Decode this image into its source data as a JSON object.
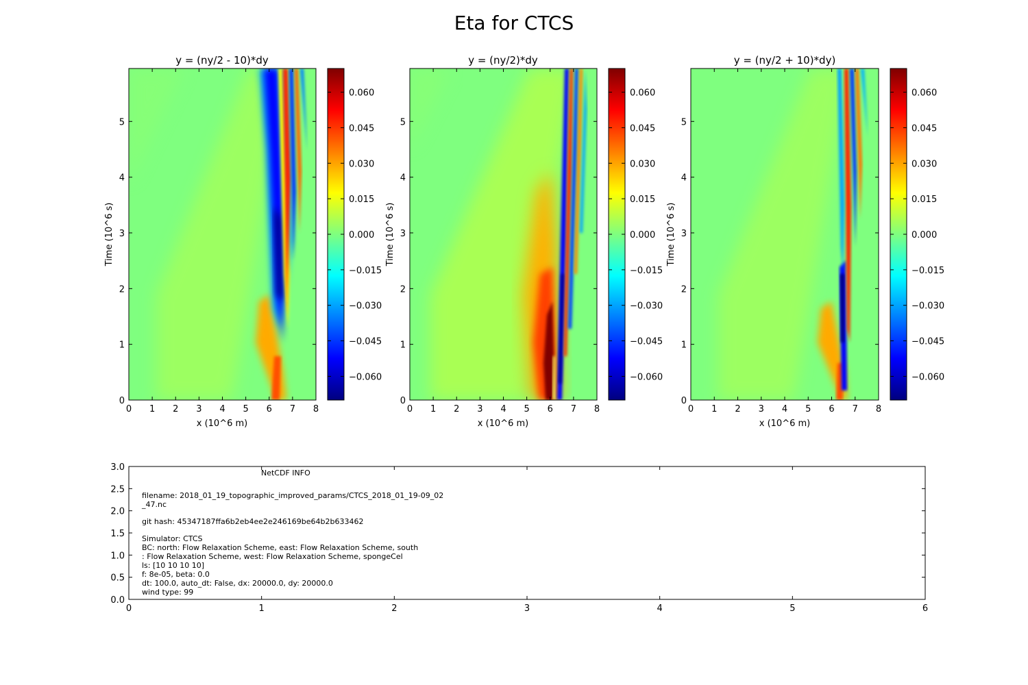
{
  "title": "Eta for CTCS",
  "colormap": [
    "#00007f",
    "#0000ff",
    "#007fff",
    "#00ffff",
    "#7fff7f",
    "#ffff00",
    "#ff7f00",
    "#ff0000",
    "#7f0000"
  ],
  "chart_data": [
    {
      "type": "heatmap",
      "title": "y = (ny/2 - 10)*dy",
      "xlabel": "x (10^6 m)",
      "ylabel": "Time (10^6 s)",
      "xlim": [
        0,
        8
      ],
      "ylim": [
        0,
        5.95
      ],
      "xticks": [
        "0",
        "1",
        "2",
        "3",
        "4",
        "5",
        "6",
        "7",
        "8"
      ],
      "yticks": [
        "0",
        "1",
        "2",
        "3",
        "4",
        "5"
      ],
      "colorbar": {
        "range": [
          -0.07,
          0.07
        ],
        "ticks": [
          "0.060",
          "0.045",
          "0.030",
          "0.015",
          "0.000",
          "−0.015",
          "−0.030",
          "−0.045",
          "−0.060"
        ]
      }
    },
    {
      "type": "heatmap",
      "title": "y = (ny/2)*dy",
      "xlabel": "x (10^6 m)",
      "ylabel": "Time (10^6 s)",
      "xlim": [
        0,
        8
      ],
      "ylim": [
        0,
        5.95
      ],
      "xticks": [
        "0",
        "1",
        "2",
        "3",
        "4",
        "5",
        "6",
        "7",
        "8"
      ],
      "yticks": [
        "0",
        "1",
        "2",
        "3",
        "4",
        "5"
      ],
      "colorbar": {
        "range": [
          -0.07,
          0.07
        ],
        "ticks": [
          "0.060",
          "0.045",
          "0.030",
          "0.015",
          "0.000",
          "−0.015",
          "−0.030",
          "−0.045",
          "−0.060"
        ]
      }
    },
    {
      "type": "heatmap",
      "title": "y = (ny/2 + 10)*dy)",
      "xlabel": "x (10^6 m)",
      "ylabel": "Time (10^6 s)",
      "xlim": [
        0,
        8
      ],
      "ylim": [
        0,
        5.95
      ],
      "xticks": [
        "0",
        "1",
        "2",
        "3",
        "4",
        "5",
        "6",
        "7",
        "8"
      ],
      "yticks": [
        "0",
        "1",
        "2",
        "3",
        "4",
        "5"
      ],
      "colorbar": {
        "range": [
          -0.07,
          0.07
        ],
        "ticks": [
          "0.060",
          "0.045",
          "0.030",
          "0.015",
          "0.000",
          "−0.015",
          "−0.030",
          "−0.045",
          "−0.060"
        ]
      }
    },
    {
      "type": "table",
      "xlim": [
        0,
        6
      ],
      "ylim": [
        0,
        3
      ],
      "xticks": [
        "0",
        "1",
        "2",
        "3",
        "4",
        "5",
        "6"
      ],
      "yticks": [
        "0.0",
        "0.5",
        "1.0",
        "1.5",
        "2.0",
        "2.5",
        "3.0"
      ],
      "info_title": "NetCDF INFO",
      "info_lines": [
        "filename: 2018_01_19_topographic_improved_params/CTCS_2018_01_19-09_02",
        "     _47.nc",
        "",
        "git hash: 45347187ffa6b2eb4ee2e246169be64b2b633462",
        "",
        "Simulator: CTCS",
        "BC: north: Flow Relaxation Scheme, east: Flow Relaxation Scheme, south",
        "     : Flow Relaxation Scheme, west: Flow Relaxation Scheme, spongeCel",
        "     ls: [10 10 10 10]",
        "f:  8e-05, beta: 0.0",
        "dt: 100.0, auto_dt: False, dx: 20000.0, dy: 20000.0",
        "wind type: 99"
      ]
    }
  ]
}
